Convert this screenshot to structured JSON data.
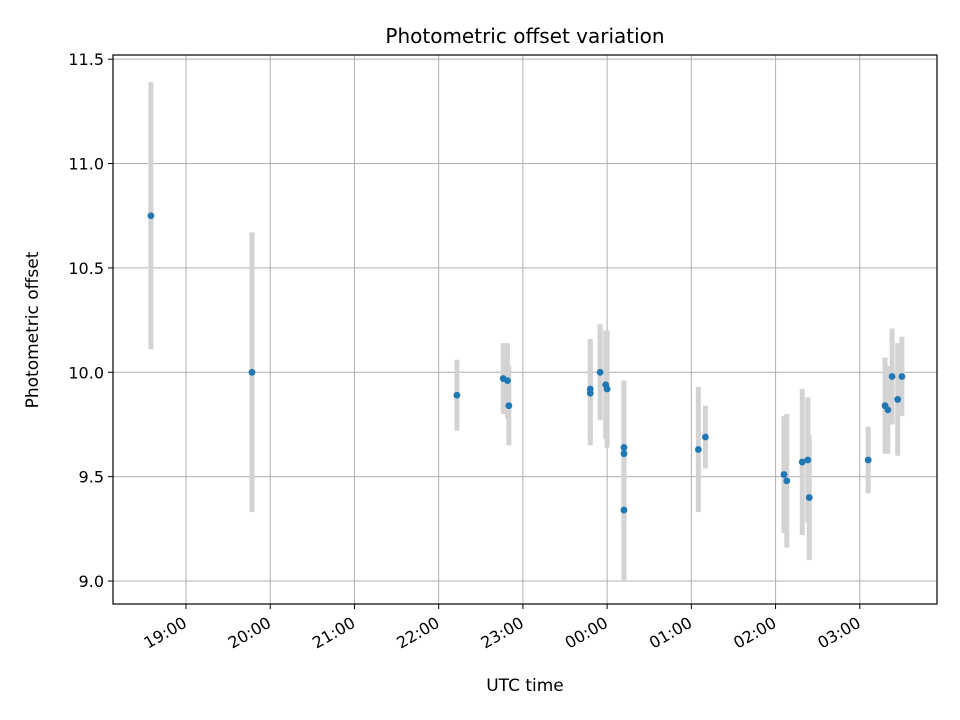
{
  "chart_data": {
    "type": "scatter",
    "title": "Photometric offset variation",
    "xlabel": "UTC time",
    "ylabel": "Photometric offset",
    "x_tick_labels": [
      "19:00",
      "20:00",
      "21:00",
      "22:00",
      "23:00",
      "00:00",
      "01:00",
      "02:00",
      "03:00"
    ],
    "y_tick_labels": [
      "9.0",
      "9.5",
      "10.0",
      "10.5",
      "11.0",
      "11.5"
    ],
    "y_ticks": [
      9.0,
      9.5,
      10.0,
      10.5,
      11.0,
      11.5
    ],
    "ylim": [
      8.89,
      11.52
    ],
    "xlim": [
      "18:08",
      "27:55"
    ],
    "grid": true,
    "legend": "none",
    "colors": {
      "points": "#1f77b4",
      "errorbars": "#d3d3d3",
      "grid": "#b0b0b0"
    },
    "points": [
      {
        "x": "18:35",
        "y": 10.75,
        "err": 0.64
      },
      {
        "x": "19:47",
        "y": 10.0,
        "err": 0.67
      },
      {
        "x": "22:13",
        "y": 9.89,
        "err": 0.17
      },
      {
        "x": "22:46",
        "y": 9.97,
        "err": 0.17
      },
      {
        "x": "22:49",
        "y": 9.96,
        "err": 0.18
      },
      {
        "x": "22:50",
        "y": 9.84,
        "err": 0.19
      },
      {
        "x": "23:48",
        "y": 9.9,
        "err": 0.25
      },
      {
        "x": "23:48",
        "y": 9.92,
        "err": 0.24
      },
      {
        "x": "23:55",
        "y": 10.0,
        "err": 0.23
      },
      {
        "x": "23:59",
        "y": 9.94,
        "err": 0.26
      },
      {
        "x": "24:00",
        "y": 9.92,
        "err": 0.28
      },
      {
        "x": "24:12",
        "y": 9.64,
        "err": 0.32
      },
      {
        "x": "24:12",
        "y": 9.61,
        "err": 0.35
      },
      {
        "x": "24:12",
        "y": 9.34,
        "err": 0.34
      },
      {
        "x": "25:05",
        "y": 9.63,
        "err": 0.3
      },
      {
        "x": "25:10",
        "y": 9.69,
        "err": 0.15
      },
      {
        "x": "26:06",
        "y": 9.51,
        "err": 0.28
      },
      {
        "x": "26:08",
        "y": 9.48,
        "err": 0.32
      },
      {
        "x": "26:19",
        "y": 9.57,
        "err": 0.35
      },
      {
        "x": "26:23",
        "y": 9.58,
        "err": 0.3
      },
      {
        "x": "26:24",
        "y": 9.4,
        "err": 0.3
      },
      {
        "x": "27:06",
        "y": 9.58,
        "err": 0.16
      },
      {
        "x": "27:18",
        "y": 9.84,
        "err": 0.23
      },
      {
        "x": "27:20",
        "y": 9.82,
        "err": 0.21
      },
      {
        "x": "27:23",
        "y": 9.98,
        "err": 0.23
      },
      {
        "x": "27:27",
        "y": 9.87,
        "err": 0.27
      },
      {
        "x": "27:30",
        "y": 9.98,
        "err": 0.19
      }
    ]
  }
}
